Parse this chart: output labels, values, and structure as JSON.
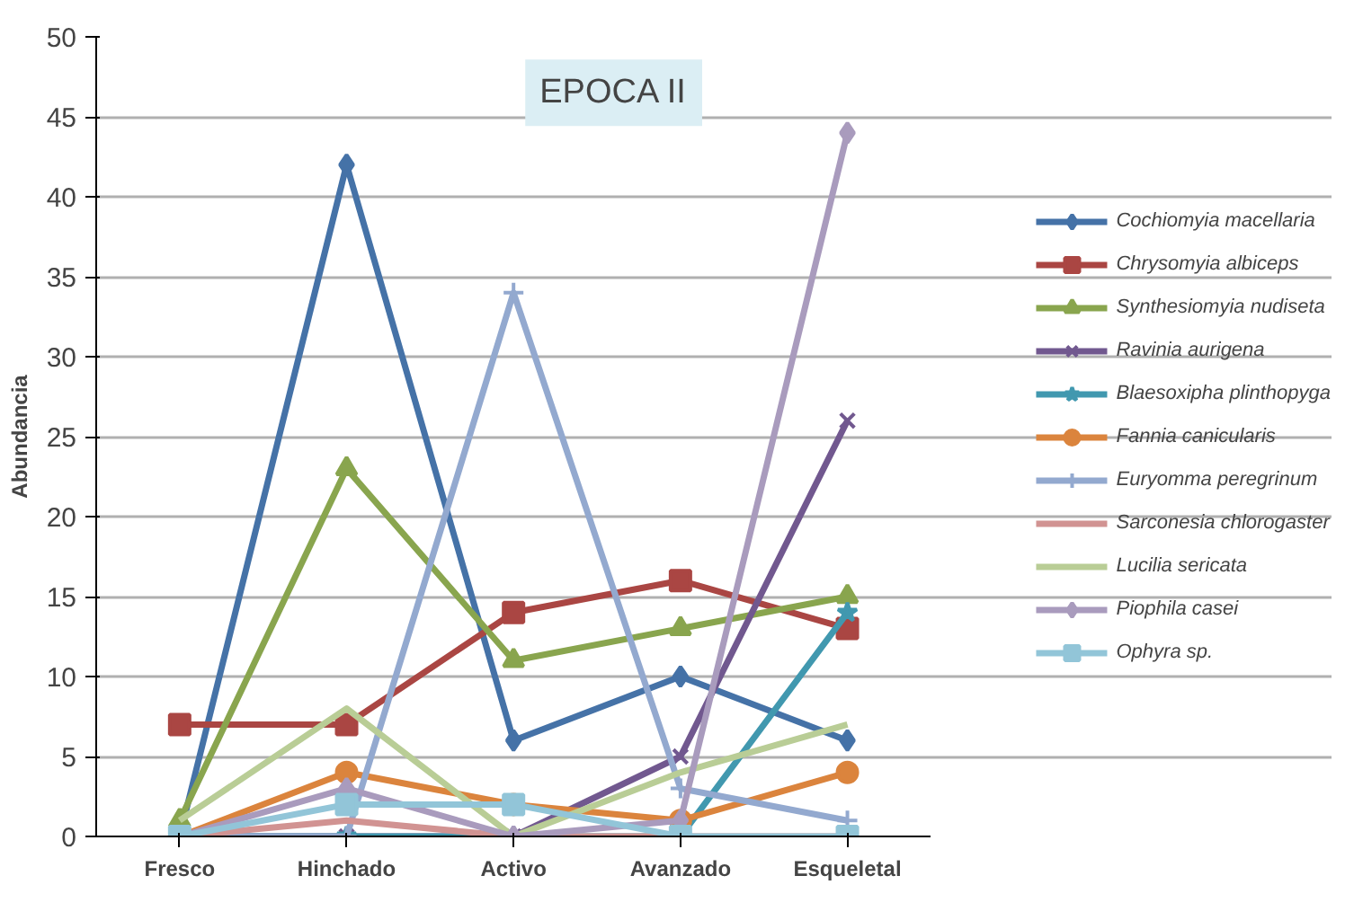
{
  "chart_data": {
    "type": "line",
    "title": "EPOCA II",
    "ylabel": "Abundancia",
    "categories": [
      "Fresco",
      "Hinchado",
      "Activo",
      "Avanzado",
      "Esqueletal"
    ],
    "ylim": [
      0,
      50
    ],
    "yticks": [
      0,
      5,
      10,
      15,
      20,
      25,
      30,
      35,
      40,
      45,
      50
    ],
    "grid": "y",
    "legend": "right",
    "line_style": "solid",
    "series": [
      {
        "name": "Cochiomyia macellaria",
        "color": "#4572a7",
        "marker": "diamond",
        "values": [
          0,
          42,
          6,
          10,
          6
        ]
      },
      {
        "name": "Chrysomyia albiceps",
        "color": "#aa4643",
        "marker": "square",
        "values": [
          7,
          7,
          14,
          16,
          13
        ]
      },
      {
        "name": "Synthesiomyia nudiseta",
        "color": "#89a54e",
        "marker": "triangle",
        "values": [
          1,
          23,
          11,
          13,
          15
        ]
      },
      {
        "name": "Ravinia aurigena",
        "color": "#71588f",
        "marker": "x",
        "values": [
          0,
          0,
          0,
          5,
          26
        ]
      },
      {
        "name": "Blaesoxipha plinthopyga",
        "color": "#4198af",
        "marker": "star",
        "values": [
          0,
          0,
          0,
          0,
          14
        ]
      },
      {
        "name": "Fannia canicularis",
        "color": "#db843d",
        "marker": "circle",
        "values": [
          0,
          4,
          2,
          1,
          4
        ]
      },
      {
        "name": "Euryomma peregrinum",
        "color": "#93a9cf",
        "marker": "cross",
        "values": [
          0,
          0,
          34,
          3,
          1
        ]
      },
      {
        "name": "Sarconesia chlorogaster",
        "color": "#d19392",
        "marker": "none",
        "values": [
          0,
          1,
          0,
          0,
          0
        ]
      },
      {
        "name": "Lucilia sericata",
        "color": "#b9cd96",
        "marker": "none",
        "values": [
          1,
          8,
          0,
          4,
          7
        ]
      },
      {
        "name": "Piophila casei",
        "color": "#a99bbd",
        "marker": "diamond",
        "values": [
          0,
          3,
          0,
          1,
          44
        ]
      },
      {
        "name": "Ophyra sp.",
        "color": "#92c5d8",
        "marker": "square",
        "values": [
          0,
          2,
          2,
          0,
          0
        ]
      }
    ]
  }
}
